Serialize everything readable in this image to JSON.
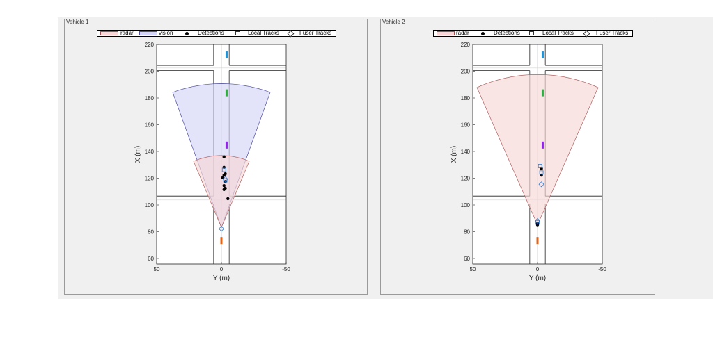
{
  "panels": [
    {
      "title": "Vehicle 1",
      "legend": [
        {
          "type": "patch",
          "label": "radar",
          "fill": "#f7d7d7",
          "stroke": "#a05050"
        },
        {
          "type": "patch",
          "label": "vision",
          "fill": "#d4d4f7",
          "stroke": "#5050a0"
        },
        {
          "type": "dot",
          "label": "Detections"
        },
        {
          "type": "square",
          "label": "Local Tracks"
        },
        {
          "type": "diamond",
          "label": "Fuser Tracks"
        }
      ],
      "xaxis": {
        "label": "Y (m)",
        "ticks": [
          "50",
          "0",
          "-50"
        ]
      },
      "yaxis": {
        "label": "X (m)",
        "ticks": [
          "220",
          "200",
          "180",
          "160",
          "140",
          "120",
          "100",
          "80",
          "60"
        ]
      }
    },
    {
      "title": "Vehicle 2",
      "legend": [
        {
          "type": "patch",
          "label": "radar",
          "fill": "#f7d7d7",
          "stroke": "#a05050"
        },
        {
          "type": "dot",
          "label": "Detections"
        },
        {
          "type": "square",
          "label": "Local Tracks"
        },
        {
          "type": "diamond",
          "label": "Fuser Tracks"
        }
      ],
      "xaxis": {
        "label": "Y (m)",
        "ticks": [
          "50",
          "0",
          "-50"
        ]
      },
      "yaxis": {
        "label": "X (m)",
        "ticks": [
          "220",
          "200",
          "180",
          "160",
          "140",
          "120",
          "100",
          "80",
          "60"
        ]
      }
    }
  ],
  "scene": {
    "road_main_half_width_m": 6,
    "cross_road_upper": {
      "x_from": 200,
      "x_to": 204
    },
    "cross_road_lower": {
      "x_from": 98,
      "x_to": 104
    },
    "vehicles": [
      {
        "x": 212,
        "y": -4,
        "color": "#2a8ec9"
      },
      {
        "x": 183,
        "y": -4,
        "color": "#3aa64a"
      },
      {
        "x": 143,
        "y": -4,
        "color": "#8a2bd2"
      },
      {
        "x": 70,
        "y": 0,
        "color": "#e0651a"
      }
    ],
    "colors": {
      "radar_fill": "#f7d7d7",
      "radar_stroke": "#b06060",
      "vision_fill": "#d4d4f7",
      "vision_stroke": "#5050a0"
    }
  },
  "sensors": [
    {
      "origin": {
        "x": 80,
        "y": 0
      },
      "coverages": [
        {
          "kind": "vision",
          "range_m": 110,
          "half_fov_deg": 20
        },
        {
          "kind": "radar",
          "range_m": 55,
          "half_fov_deg": 23
        }
      ],
      "detections": [
        {
          "x": 126,
          "y": -2
        },
        {
          "x": 120,
          "y": -2
        },
        {
          "x": 118,
          "y": -1
        },
        {
          "x": 112,
          "y": -2
        },
        {
          "x": 110,
          "y": -3
        },
        {
          "x": 115,
          "y": -3
        },
        {
          "x": 102,
          "y": -5
        },
        {
          "x": 134,
          "y": -2
        },
        {
          "x": 121,
          "y": -3
        },
        {
          "x": 109,
          "y": -2
        }
      ],
      "local_tracks": [
        {
          "x": 116,
          "y": -3
        },
        {
          "x": 124,
          "y": -2
        }
      ],
      "fuser_tracks": [
        {
          "x": 79,
          "y": 0
        },
        {
          "x": 117,
          "y": -3
        }
      ]
    },
    {
      "origin": {
        "x": 82,
        "y": 0
      },
      "coverages": [
        {
          "kind": "radar",
          "range_m": 115,
          "half_fov_deg": 24
        }
      ],
      "detections": [
        {
          "x": 82,
          "y": 0
        },
        {
          "x": 83,
          "y": 0
        },
        {
          "x": 125,
          "y": -3
        },
        {
          "x": 120,
          "y": -3
        }
      ],
      "local_tracks": [
        {
          "x": 122,
          "y": -3
        },
        {
          "x": 127,
          "y": -2
        },
        {
          "x": 84,
          "y": 0
        }
      ],
      "fuser_tracks": [
        {
          "x": 113,
          "y": -3
        },
        {
          "x": 85,
          "y": 0
        }
      ]
    }
  ]
}
